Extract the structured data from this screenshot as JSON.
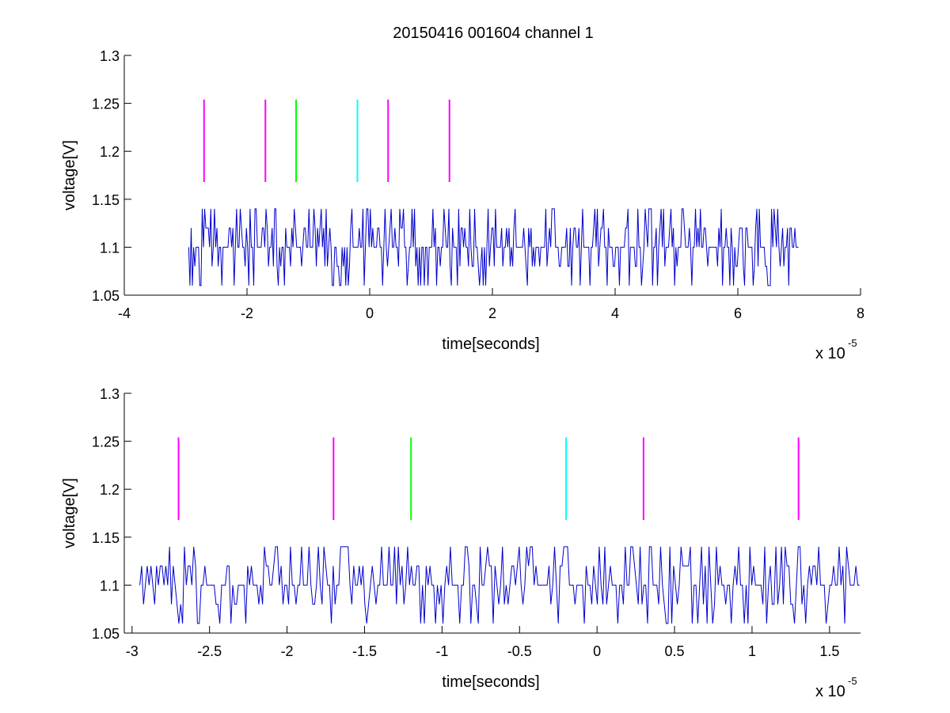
{
  "figure": {
    "title": "20150416 001604 channel 1"
  },
  "colors": {
    "trace": "#0000cc",
    "magenta": "#ff00ff",
    "green": "#00ff00",
    "cyan": "#00ffff",
    "axis": "#000000"
  },
  "chart_data": [
    {
      "type": "line",
      "title": "20150416 001604 channel 1",
      "xlabel": "time[seconds]",
      "ylabel": "voltage[V]",
      "xlim": [
        -4,
        8
      ],
      "ylim": [
        1.05,
        1.3
      ],
      "x_multiplier_text": "x 10",
      "x_multiplier_exp": "-5",
      "xticks": [
        -4,
        -2,
        0,
        2,
        4,
        6,
        8
      ],
      "xtick_labels": [
        "-4",
        "-2",
        "0",
        "2",
        "4",
        "6",
        "8"
      ],
      "yticks": [
        1.05,
        1.1,
        1.15,
        1.2,
        1.25,
        1.3
      ],
      "ytick_labels": [
        "1.05",
        "1.1",
        "1.15",
        "1.2",
        "1.25",
        "1.3"
      ],
      "grid": false,
      "signal": {
        "x_range": [
          -2.95,
          7.0
        ],
        "levels": [
          1.06,
          1.08,
          1.1,
          1.12,
          1.14
        ],
        "baseline": 1.1,
        "note_visible": "noisy digital voltage trace"
      },
      "markers": [
        {
          "x": -2.7,
          "y0": 1.168,
          "y1": 1.254,
          "color": "magenta"
        },
        {
          "x": -1.7,
          "y0": 1.168,
          "y1": 1.254,
          "color": "magenta"
        },
        {
          "x": -1.2,
          "y0": 1.168,
          "y1": 1.254,
          "color": "green"
        },
        {
          "x": -0.2,
          "y0": 1.168,
          "y1": 1.254,
          "color": "cyan"
        },
        {
          "x": 0.3,
          "y0": 1.168,
          "y1": 1.254,
          "color": "magenta"
        },
        {
          "x": 1.3,
          "y0": 1.168,
          "y1": 1.254,
          "color": "magenta"
        }
      ]
    },
    {
      "type": "line",
      "title": "",
      "xlabel": "time[seconds]",
      "ylabel": "voltage[V]",
      "xlim": [
        -3.05,
        1.7
      ],
      "ylim": [
        1.05,
        1.3
      ],
      "x_multiplier_text": "x 10",
      "x_multiplier_exp": "-5",
      "xticks": [
        -3,
        -2.5,
        -2,
        -1.5,
        -1,
        -0.5,
        0,
        0.5,
        1,
        1.5
      ],
      "xtick_labels": [
        "-3",
        "-2.5",
        "-2",
        "-1.5",
        "-1",
        "-0.5",
        "0",
        "0.5",
        "1",
        "1.5"
      ],
      "yticks": [
        1.05,
        1.1,
        1.15,
        1.2,
        1.25,
        1.3
      ],
      "ytick_labels": [
        "1.05",
        "1.1",
        "1.15",
        "1.2",
        "1.25",
        "1.3"
      ],
      "grid": false,
      "signal": {
        "x_range": [
          -2.95,
          1.7
        ],
        "levels": [
          1.06,
          1.08,
          1.1,
          1.12,
          1.14
        ],
        "baseline": 1.1
      },
      "markers": [
        {
          "x": -2.7,
          "y0": 1.168,
          "y1": 1.254,
          "color": "magenta"
        },
        {
          "x": -1.7,
          "y0": 1.168,
          "y1": 1.254,
          "color": "magenta"
        },
        {
          "x": -1.2,
          "y0": 1.168,
          "y1": 1.254,
          "color": "green"
        },
        {
          "x": -0.2,
          "y0": 1.168,
          "y1": 1.254,
          "color": "cyan"
        },
        {
          "x": 0.3,
          "y0": 1.168,
          "y1": 1.254,
          "color": "magenta"
        },
        {
          "x": 1.3,
          "y0": 1.168,
          "y1": 1.254,
          "color": "magenta"
        }
      ]
    }
  ]
}
